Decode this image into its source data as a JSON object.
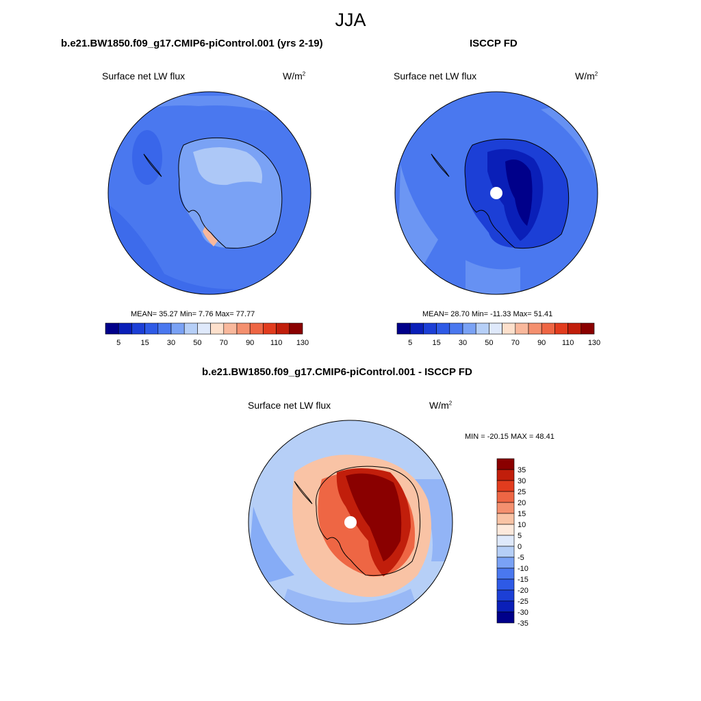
{
  "main_title": "JJA",
  "colors": {
    "abs_scale": [
      "#00008a",
      "#0a1fb8",
      "#1c3fd6",
      "#2e5ae6",
      "#4a78ef",
      "#7aa2f5",
      "#b6cff7",
      "#dfe9fb",
      "#fde0cc",
      "#f9b89c",
      "#f4906f",
      "#ee6644",
      "#e23c1e",
      "#c11e0b",
      "#8a0000"
    ],
    "diff_scale": [
      "#00008a",
      "#0a1fb8",
      "#1c3fd6",
      "#2e5ae6",
      "#4a78ef",
      "#7aa2f5",
      "#b6cff7",
      "#dfe9fb",
      "#fde9dc",
      "#f9c3a5",
      "#f4906f",
      "#ee6644",
      "#e23c1e",
      "#c11e0b",
      "#8a0000"
    ],
    "pole_hole": "#ffffff",
    "coastline": "#000000"
  },
  "chart_data": [
    {
      "type": "heatmap",
      "title": "b.e21.BW1850.f09_g17.CMIP6-piControl.001 (yrs 2-19)",
      "left_label": "Surface net LW flux",
      "units_base": "W/m",
      "units_exp": "2",
      "stats": "MEAN=  35.27  Min=   7.76  Max=  77.77",
      "mean": 35.27,
      "min": 7.76,
      "max": 77.77,
      "colorbar": {
        "orientation": "horizontal",
        "levels": [
          5,
          15,
          30,
          50,
          70,
          90,
          110,
          130
        ],
        "labels": [
          "5",
          "15",
          "30",
          "50",
          "70",
          "90",
          "110",
          "130"
        ]
      }
    },
    {
      "type": "heatmap",
      "title": "ISCCP FD",
      "left_label": "Surface net LW flux",
      "units_base": "W/m",
      "units_exp": "2",
      "stats": "MEAN=  28.70  Min= -11.33  Max=  51.41",
      "mean": 28.7,
      "min": -11.33,
      "max": 51.41,
      "colorbar": {
        "orientation": "horizontal",
        "levels": [
          5,
          15,
          30,
          50,
          70,
          90,
          110,
          130
        ],
        "labels": [
          "5",
          "15",
          "30",
          "50",
          "70",
          "90",
          "110",
          "130"
        ]
      }
    },
    {
      "type": "heatmap",
      "title": "b.e21.BW1850.f09_g17.CMIP6-piControl.001 - ISCCP FD",
      "left_label": "Surface net LW flux",
      "units_base": "W/m",
      "units_exp": "2",
      "stats": "MIN = -20.15 MAX =  48.41",
      "min": -20.15,
      "max": 48.41,
      "colorbar": {
        "orientation": "vertical",
        "levels": [
          35,
          30,
          25,
          20,
          15,
          10,
          5,
          0,
          -5,
          -10,
          -15,
          -20,
          -25,
          -30,
          -35
        ],
        "labels": [
          "35",
          "30",
          "25",
          "20",
          "15",
          "10",
          "5",
          "0",
          "-5",
          "-10",
          "-15",
          "-20",
          "-25",
          "-30",
          "-35"
        ]
      }
    }
  ]
}
